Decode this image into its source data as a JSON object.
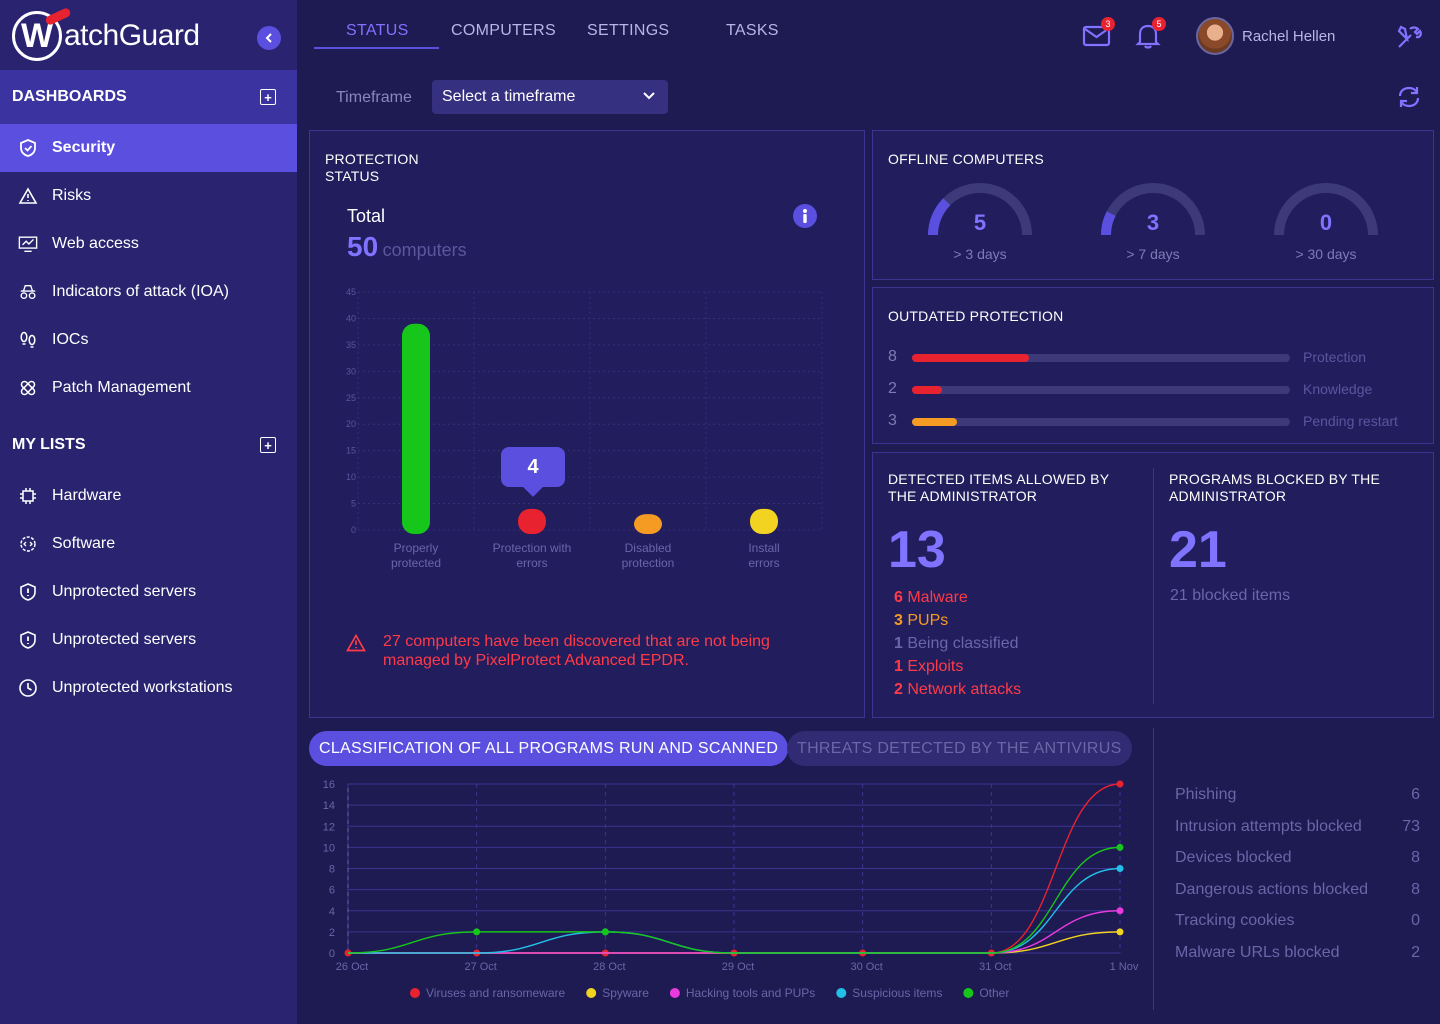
{
  "app": {
    "brand": "atchGuard",
    "brand_letter": "W"
  },
  "tabs": [
    {
      "label": "STATUS"
    },
    {
      "label": "COMPUTERS"
    },
    {
      "label": "SETTINGS"
    },
    {
      "label": "TASKS"
    }
  ],
  "topbar": {
    "mail_count": "3",
    "notif_count": "5",
    "username": "Rachel Hellen"
  },
  "sidebar": {
    "dashboards_title": "DASHBOARDS",
    "dashboards": [
      {
        "label": "Security",
        "icon": "shield-icon"
      },
      {
        "label": "Risks",
        "icon": "warning-icon"
      },
      {
        "label": "Web access",
        "icon": "monitor-icon"
      },
      {
        "label": "Indicators of attack (IOA)",
        "icon": "spy-icon"
      },
      {
        "label": "IOCs",
        "icon": "footprints-icon"
      },
      {
        "label": "Patch Management",
        "icon": "bandage-icon"
      }
    ],
    "lists_title": "MY LISTS",
    "lists": [
      {
        "label": "Hardware",
        "icon": "chip-icon"
      },
      {
        "label": "Software",
        "icon": "code-gear-icon"
      },
      {
        "label": "Unprotected servers",
        "icon": "shield-alert-icon"
      },
      {
        "label": "Unprotected servers",
        "icon": "shield-alert-icon"
      },
      {
        "label": "Unprotected workstations",
        "icon": "clock-icon"
      }
    ]
  },
  "timeframe": {
    "label": "Timeframe",
    "value": "Select a timeframe"
  },
  "protection": {
    "title_l1": "PROTECTION",
    "title_l2": "STATUS",
    "total_label": "Total",
    "total_value": "50",
    "total_unit": "computers",
    "tooltip_value": "4",
    "warning": "27 computers have been discovered that are not being managed by PixelProtect Advanced EPDR."
  },
  "chart_data": [
    {
      "type": "bar",
      "categories": [
        "Properly protected",
        "Protection with errors",
        "Disabled protection",
        "Install errors"
      ],
      "values": [
        39,
        4,
        3,
        4
      ],
      "colors": [
        "#17c61a",
        "#e8232f",
        "#f59b23",
        "#f2d321"
      ],
      "ylim": [
        0,
        45
      ],
      "yticks": [
        0,
        5,
        10,
        15,
        20,
        25,
        30,
        35,
        40,
        45
      ],
      "grid": true
    },
    {
      "type": "line",
      "x": [
        "26 Oct",
        "27 Oct",
        "28 Oct",
        "29 Oct",
        "30 Oct",
        "31 Oct",
        "1 Nov"
      ],
      "ylim": [
        0,
        16
      ],
      "yticks": [
        0,
        2,
        4,
        6,
        8,
        10,
        12,
        14,
        16
      ],
      "series": [
        {
          "name": "Viruses and ransomeware",
          "color": "#e8232f",
          "values": [
            0,
            0,
            0,
            0,
            0,
            0,
            16
          ]
        },
        {
          "name": "Spyware",
          "color": "#f2d321",
          "values": [
            0,
            0,
            0,
            0,
            0,
            0,
            2
          ]
        },
        {
          "name": "Hacking tools and PUPs",
          "color": "#e83adf",
          "values": [
            0,
            0,
            0,
            0,
            0,
            0,
            4
          ]
        },
        {
          "name": "Suspicious items",
          "color": "#22c0e8",
          "values": [
            0,
            0,
            2,
            0,
            0,
            0,
            8
          ]
        },
        {
          "name": "Other",
          "color": "#17c61a",
          "values": [
            0,
            2,
            2,
            0,
            0,
            0,
            10
          ]
        }
      ],
      "legend": "bottom"
    }
  ],
  "offline": {
    "title": "OFFLINE COMPUTERS",
    "gauges": [
      {
        "value": "5",
        "label": "> 3 days",
        "fraction": 0.25
      },
      {
        "value": "3",
        "label": "> 7 days",
        "fraction": 0.15
      },
      {
        "value": "0",
        "label": "> 30 days",
        "fraction": 0
      }
    ]
  },
  "outdated": {
    "title": "OUTDATED PROTECTION",
    "rows": [
      {
        "value": "8",
        "label": "Protection",
        "fraction": 0.31,
        "color": "#e8232f"
      },
      {
        "value": "2",
        "label": "Knowledge",
        "fraction": 0.08,
        "color": "#e8232f"
      },
      {
        "value": "3",
        "label": "Pending restart",
        "fraction": 0.12,
        "color": "#f59b23"
      }
    ]
  },
  "allowed": {
    "title_l1": "DETECTED ITEMS ALLOWED BY",
    "title_l2": "THE ADMINISTRATOR",
    "total": "13",
    "items": [
      {
        "count": "6",
        "label": "Malware",
        "color": "#ff3b48"
      },
      {
        "count": "3",
        "label": "PUPs",
        "color": "#f59b23"
      },
      {
        "count": "1",
        "label": "Being classified",
        "color": "#6a66a8"
      },
      {
        "count": "1",
        "label": "Exploits",
        "color": "#ff3b48"
      },
      {
        "count": "2",
        "label": "Network attacks",
        "color": "#ff3b48"
      }
    ]
  },
  "blocked": {
    "title_l1": "PROGRAMS BLOCKED BY THE",
    "title_l2": "ADMINISTRATOR",
    "total": "21",
    "sub": "21 blocked items"
  },
  "pills": {
    "active": "CLASSIFICATION OF ALL PROGRAMS RUN AND SCANNED",
    "inactive": "THREATS DETECTED BY THE ANTIVIRUS"
  },
  "stats": [
    {
      "label": "Phishing",
      "value": "6"
    },
    {
      "label": "Intrusion attempts blocked",
      "value": "73"
    },
    {
      "label": "Devices blocked",
      "value": "8"
    },
    {
      "label": "Dangerous actions blocked",
      "value": "8"
    },
    {
      "label": "Tracking cookies",
      "value": "0"
    },
    {
      "label": "Malware URLs blocked",
      "value": "2"
    }
  ],
  "colors": {
    "accent": "#5b4fe0",
    "sidebar": "#2a2470",
    "background": "#1e1a52",
    "danger": "#e8232f"
  }
}
